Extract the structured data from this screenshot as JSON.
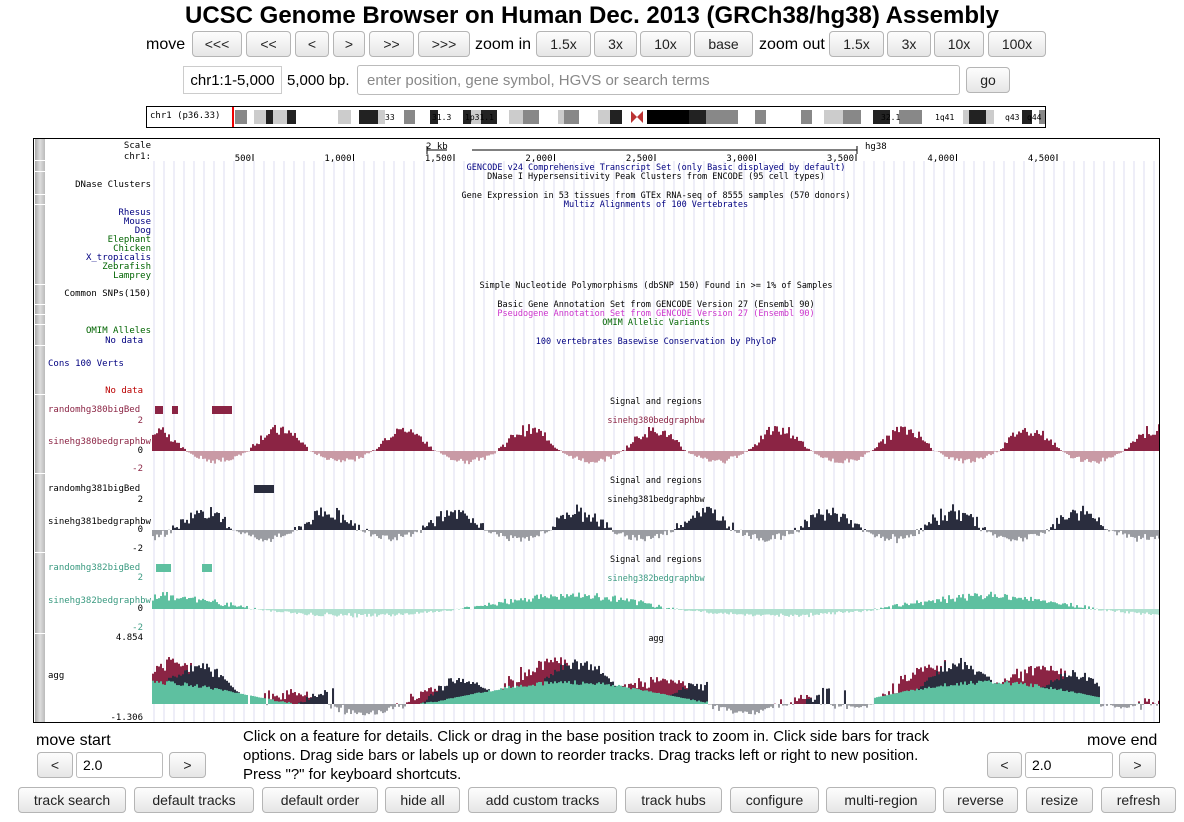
{
  "title": "UCSC Genome Browser on Human Dec. 2013 (GRCh38/hg38) Assembly",
  "nav": {
    "move_label": "move",
    "move_buttons": [
      "<<<",
      "<<",
      "<",
      ">",
      ">>",
      ">>>"
    ],
    "zoom_in_label": "zoom in",
    "zoom_in_buttons": [
      "1.5x",
      "3x",
      "10x",
      "base"
    ],
    "zoom_out_label": "zoom out",
    "zoom_out_buttons": [
      "1.5x",
      "3x",
      "10x",
      "100x"
    ]
  },
  "position": {
    "value": "chr1:1-5,000",
    "size": "5,000 bp.",
    "search_placeholder": "enter position, gene symbol, HGVS or search terms",
    "go_label": "go"
  },
  "ideogram": {
    "chrom_label": "chr1 (p36.33)",
    "band_labels": [
      "33",
      "31.3",
      "1p31.1",
      "1q12",
      "32.1",
      "1q41",
      "q43",
      "q44"
    ]
  },
  "ruler": {
    "scale_label": "Scale",
    "chrom_label": "chr1:",
    "scale_value": "2 kb",
    "assembly": "hg38",
    "ticks": [
      "500",
      "1,000",
      "1,500",
      "2,000",
      "2,500",
      "3,000",
      "3,500",
      "4,000",
      "4,500"
    ]
  },
  "track_titles": {
    "gencode": "GENCODE v24 Comprehensive Transcript Set (only Basic displayed by default)",
    "dnase": "DNase I Hypersensitivity Peak Clusters from ENCODE (95 cell types)",
    "gtex": "Gene Expression in 53 tissues from GTEx RNA-seq of 8555 samples (570 donors)",
    "multiz": "Multiz Alignments of 100 Vertebrates",
    "snp": "Simple Nucleotide Polymorphisms (dbSNP 150) Found in >= 1% of Samples",
    "basic_gene": "Basic Gene Annotation Set from GENCODE Version 27 (Ensembl 90)",
    "pseudogene": "Pseudogene Annotation Set from GENCODE Version 27 (Ensembl 90)",
    "omim": "OMIM Allelic Variants",
    "phylop": "100 vertebrates Basewise Conservation by PhyloP",
    "signal1": "Signal and regions",
    "signal2": "Signal and regions",
    "signal3": "Signal and regions",
    "sine0bw": "sinehg380bedgraphbw",
    "sine1bw": "sinehg381bedgraphbw",
    "sine2bw": "sinehg382bedgraphbw",
    "agg": "agg"
  },
  "left_labels": {
    "dnase_clusters": "DNase Clusters",
    "species": [
      "Rhesus",
      "Mouse",
      "Dog",
      "Elephant",
      "Chicken",
      "X_tropicalis",
      "Zebrafish",
      "Lamprey"
    ],
    "common_snps": "Common SNPs(150)",
    "omim_alleles": "OMIM Alleles",
    "no_data_1": "No data",
    "cons": "Cons 100 Verts",
    "no_data_2": "No data",
    "random0": "randomhg380bigBed",
    "sine0": "sinehg380bedgraphbw",
    "random1": "randomhg381bigBed",
    "sine1": "sinehg381bedgraphbw",
    "random2": "randomhg382bigBed",
    "sine2": "sinehg382bedgraphbw",
    "agg": "agg",
    "axis_2": "2",
    "axis_0": "0",
    "axis_neg2": "-2",
    "agg_max": "4.854",
    "agg_min": "-1.306"
  },
  "colors": {
    "track0": "#8b2444",
    "track0_light": "#c99aa5",
    "track1": "#2a2d3e",
    "track1_light": "#9a9ca2",
    "track2": "#5ec0a0",
    "track2_light": "#aee0cf",
    "species_rhesus": "#000080",
    "species_green": "#006400",
    "pseudogene": "#cc33cc",
    "omim": "#006400"
  },
  "footer": {
    "move_start": "move start",
    "move_end": "move end",
    "start_value": "2.0",
    "end_value": "2.0",
    "left_arrow": "<",
    "right_arrow": ">",
    "help_text": "Click on a feature for details. Click or drag in the base position track to zoom in. Click side bars for track options. Drag side bars or labels up or down to reorder tracks. Drag tracks left or right to new position. Press \"?\" for keyboard shortcuts."
  },
  "bottom_buttons": [
    "track search",
    "default tracks",
    "default order",
    "hide all",
    "add custom tracks",
    "track hubs",
    "configure",
    "multi-region",
    "reverse",
    "resize",
    "refresh"
  ]
}
